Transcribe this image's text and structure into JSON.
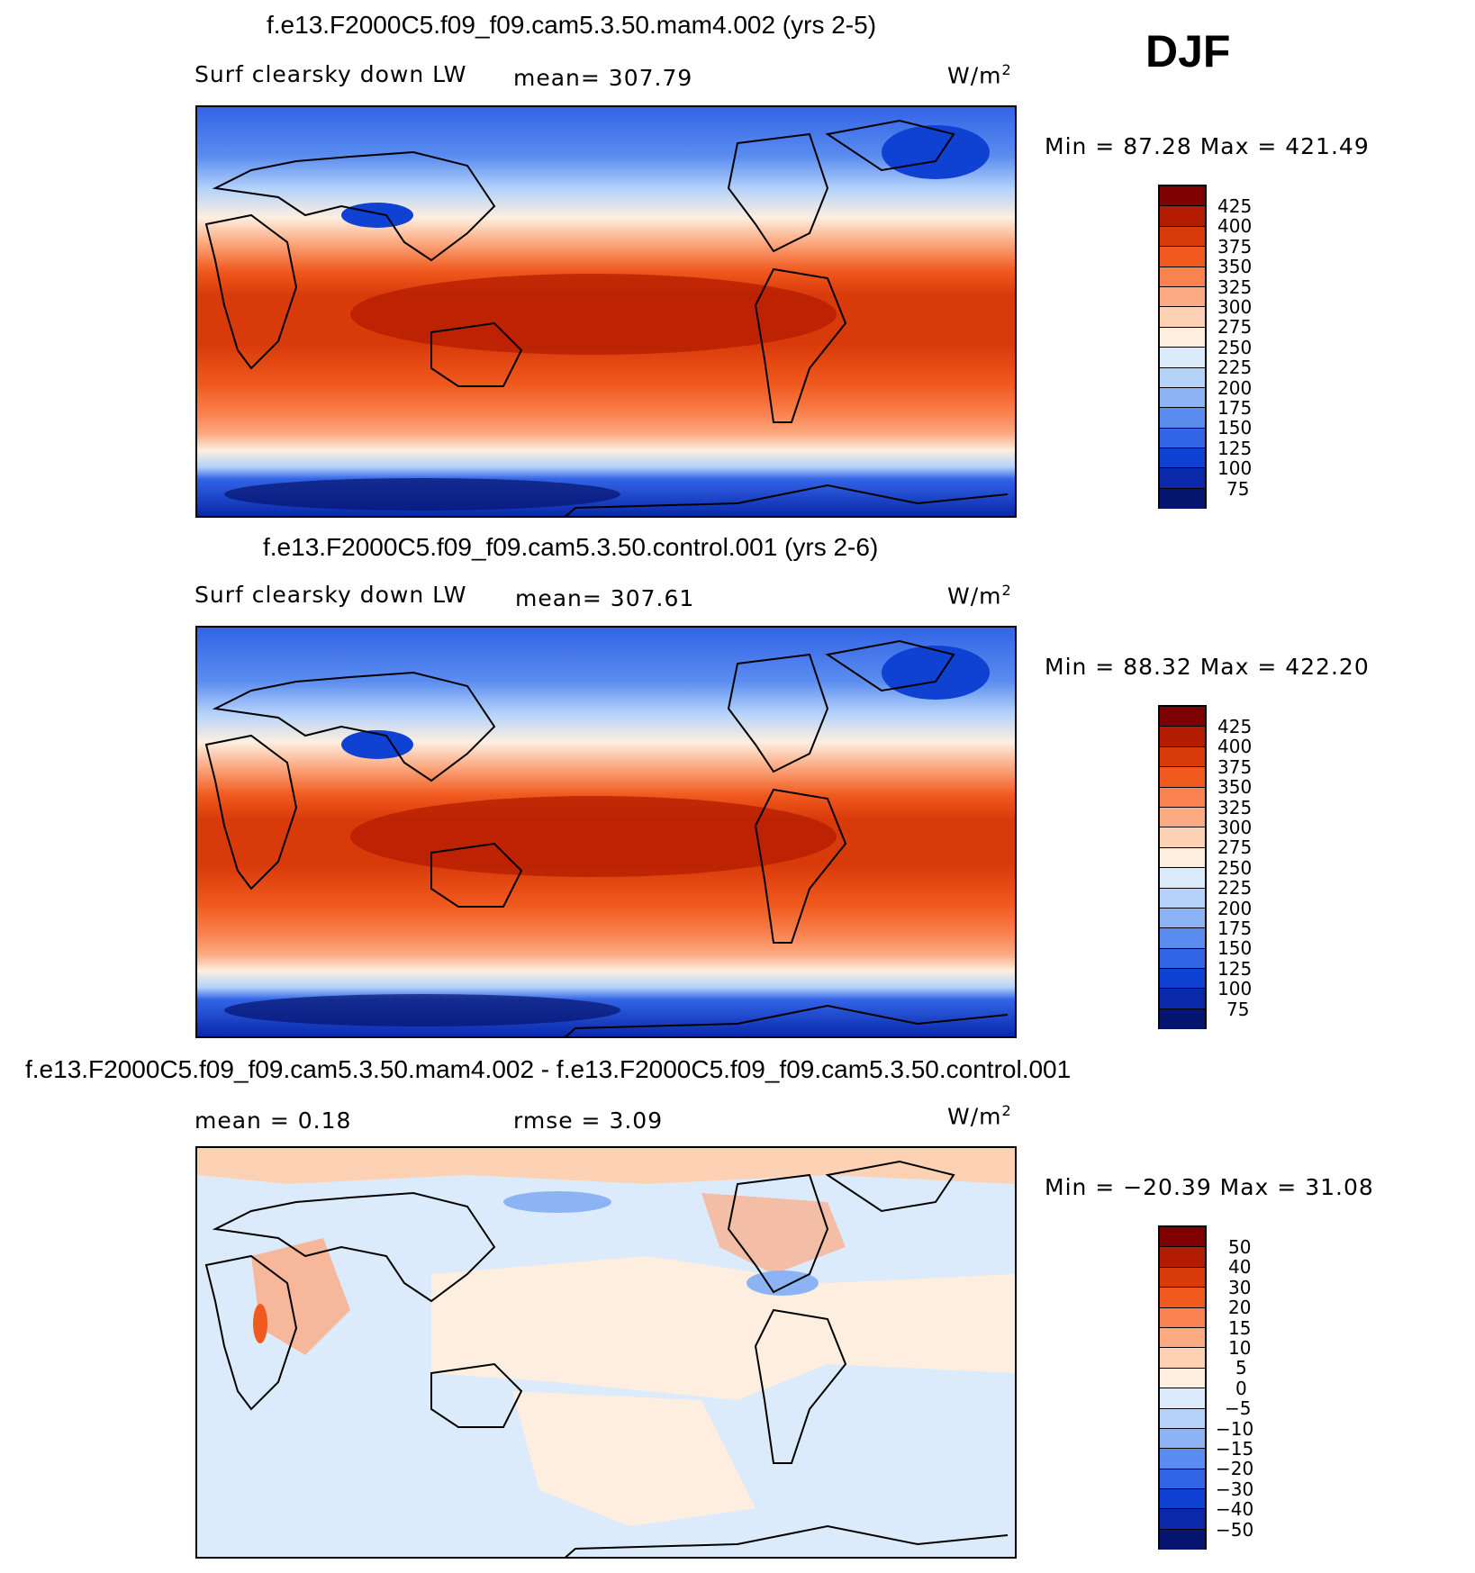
{
  "season": "DJF",
  "panels": [
    {
      "title": "f.e13.F2000C5.f09_f09.cam5.3.50.mam4.002 (yrs 2-5)",
      "variable": "Surf clearsky down LW",
      "mean_label": "mean= 307.79",
      "units_base": "W/m",
      "units_exp": "2",
      "minmax": "Min =   87.28  Max =  421.49",
      "ticks": [
        "425",
        "400",
        "375",
        "350",
        "325",
        "300",
        "275",
        "250",
        "225",
        "200",
        "175",
        "150",
        "125",
        "100",
        "75"
      ]
    },
    {
      "title": "f.e13.F2000C5.f09_f09.cam5.3.50.control.001 (yrs 2-6)",
      "variable": "Surf clearsky down LW",
      "mean_label": "mean= 307.61",
      "units_base": "W/m",
      "units_exp": "2",
      "minmax": "Min =   88.32  Max =  422.20",
      "ticks": [
        "425",
        "400",
        "375",
        "350",
        "325",
        "300",
        "275",
        "250",
        "225",
        "200",
        "175",
        "150",
        "125",
        "100",
        "75"
      ]
    },
    {
      "title": "f.e13.F2000C5.f09_f09.cam5.3.50.mam4.002 - f.e13.F2000C5.f09_f09.cam5.3.50.control.001",
      "mean_label": "mean =    0.18",
      "rmse_label": "rmse =    3.09",
      "units_base": "W/m",
      "units_exp": "2",
      "minmax": "Min = −20.39  Max =   31.08",
      "ticks": [
        "50",
        "40",
        "30",
        "20",
        "15",
        "10",
        "5",
        "0",
        "−5",
        "−10",
        "−15",
        "−20",
        "−30",
        "−40",
        "−50"
      ]
    }
  ],
  "colors": {
    "absolute_scale": [
      "#7f0000",
      "#b31c00",
      "#d93a0a",
      "#f05a1e",
      "#fa8250",
      "#fcaa82",
      "#fdd2b4",
      "#fdefe0",
      "#dcebfb",
      "#b4d2fa",
      "#8cb4f5",
      "#5a8cf0",
      "#3264e6",
      "#0f41d2",
      "#0a28aa",
      "#05146e"
    ],
    "difference_scale": [
      "#7f0000",
      "#b31c00",
      "#d93a0a",
      "#f05a1e",
      "#fa8250",
      "#fcaa82",
      "#fdd2b4",
      "#fdeee0",
      "#dcebfb",
      "#b4d2fa",
      "#8cb4f5",
      "#5a8cf0",
      "#3264e6",
      "#0f41d2",
      "#0a28aa",
      "#05146e"
    ]
  }
}
